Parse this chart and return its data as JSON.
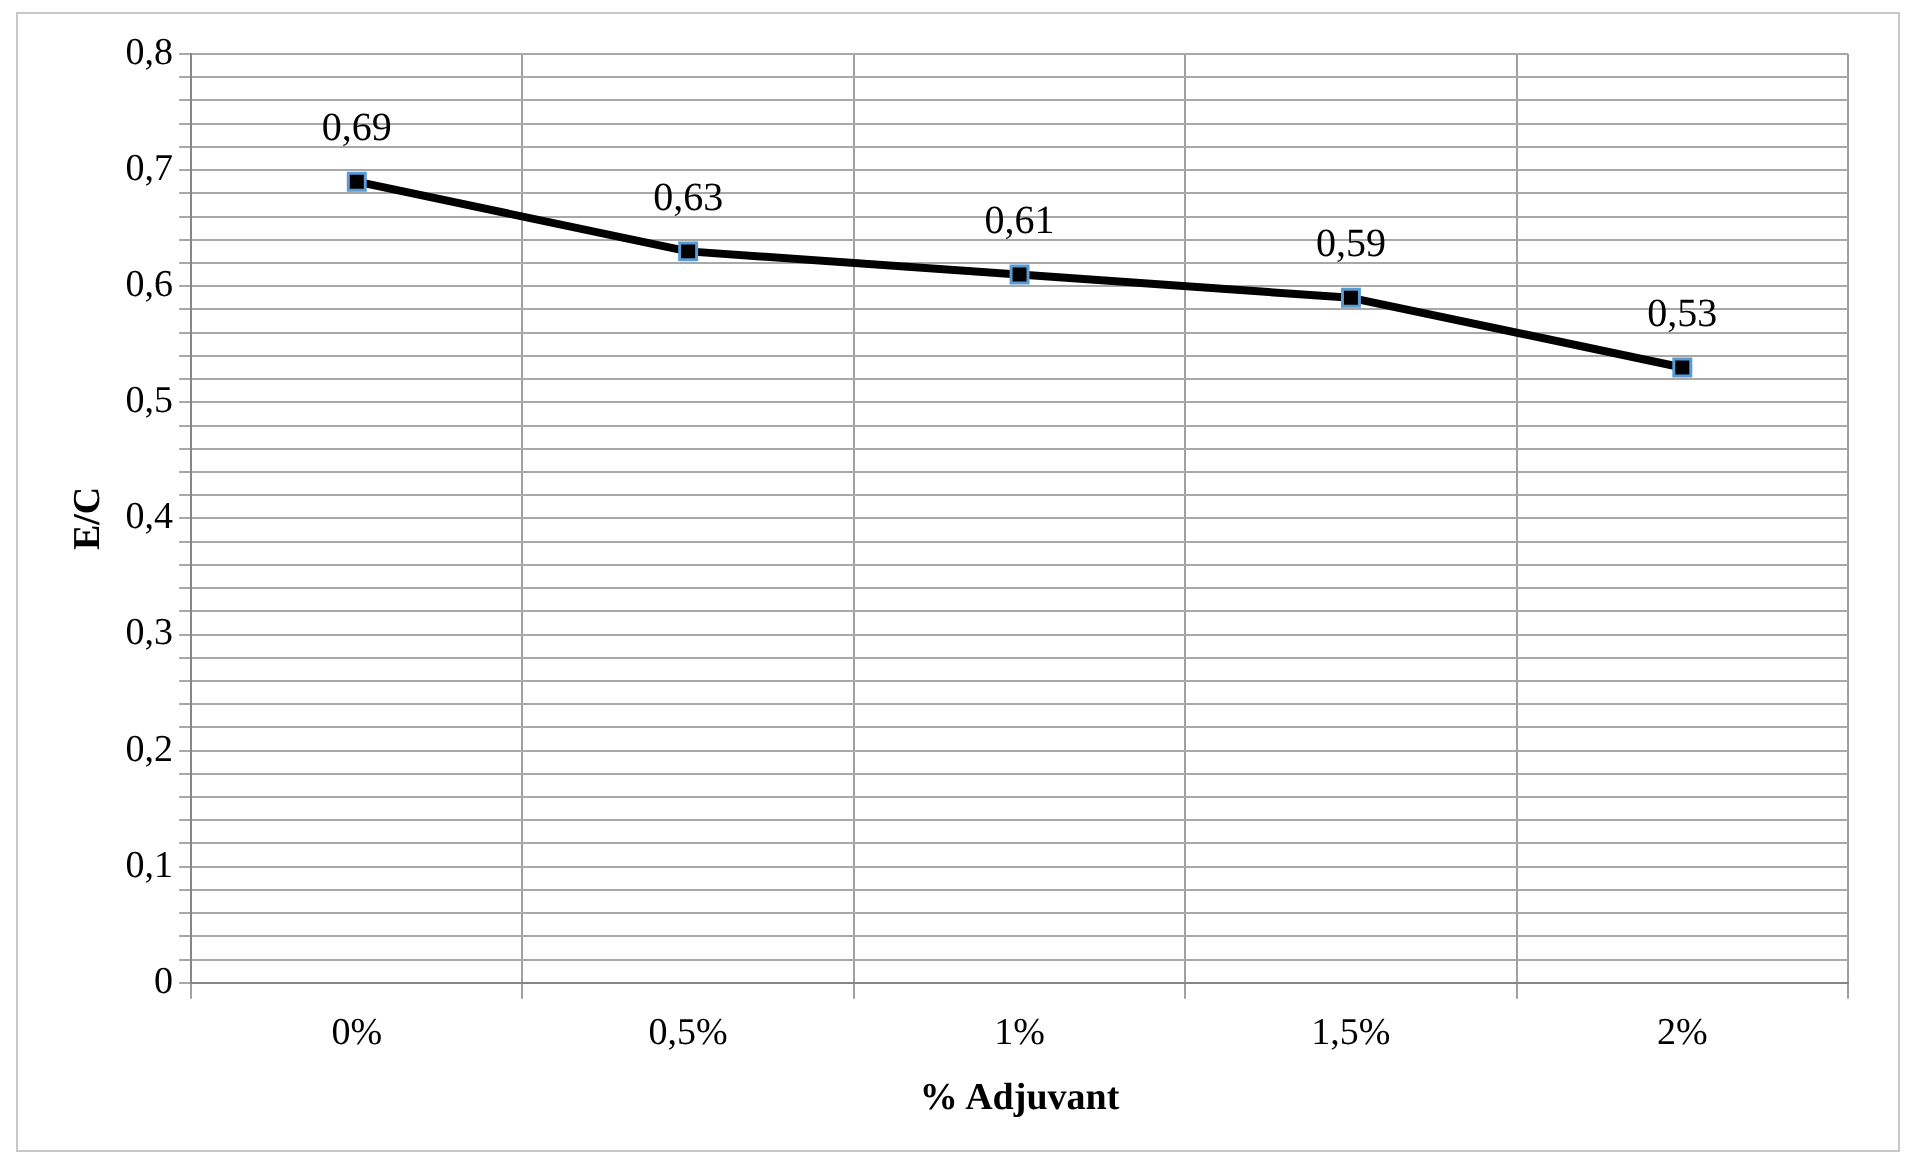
{
  "chart_data": {
    "type": "line",
    "xlabel": "% Adjuvant",
    "ylabel": "E/C",
    "categories": [
      "0%",
      "0,5%",
      "1%",
      "1,5%",
      "2%"
    ],
    "series": [
      {
        "color": "#000000",
        "values": [
          0.69,
          0.63,
          0.61,
          0.59,
          0.53
        ],
        "value_labels": [
          "0,69",
          "0,63",
          "0,61",
          "0,59",
          "0,53"
        ]
      }
    ],
    "ylim": [
      0,
      0.8
    ],
    "yticks": [
      0,
      {
        "value": 0.02,
        "label": null
      },
      {
        "value": 0.04,
        "label": null
      },
      {
        "value": 0.06,
        "label": null
      },
      {
        "value": 0.08,
        "label": null
      },
      {
        "value": 0.1,
        "label": "0,1"
      },
      {
        "value": 0.12,
        "label": null
      },
      {
        "value": 0.14,
        "label": null
      },
      {
        "value": 0.16,
        "label": null
      },
      {
        "value": 0.18,
        "label": null
      },
      {
        "value": 0.2,
        "label": "0,2"
      },
      {
        "value": 0.22,
        "label": null
      },
      {
        "value": 0.24,
        "label": null
      },
      {
        "value": 0.26,
        "label": null
      },
      {
        "value": 0.28,
        "label": null
      },
      {
        "value": 0.3,
        "label": "0,3"
      },
      {
        "value": 0.32,
        "label": null
      },
      {
        "value": 0.34,
        "label": null
      },
      {
        "value": 0.36,
        "label": null
      },
      {
        "value": 0.38,
        "label": null
      },
      {
        "value": 0.4,
        "label": "0,4"
      },
      {
        "value": 0.42,
        "label": null
      },
      {
        "value": 0.44,
        "label": null
      },
      {
        "value": 0.46,
        "label": null
      },
      {
        "value": 0.48,
        "label": null
      },
      {
        "value": 0.5,
        "label": "0,5"
      },
      {
        "value": 0.52,
        "label": null
      },
      {
        "value": 0.54,
        "label": null
      },
      {
        "value": 0.56,
        "label": null
      },
      {
        "value": 0.58,
        "label": null
      },
      {
        "value": 0.6,
        "label": "0,6"
      },
      {
        "value": 0.62,
        "label": null
      },
      {
        "value": 0.64,
        "label": null
      },
      {
        "value": 0.66,
        "label": null
      },
      {
        "value": 0.68,
        "label": null
      },
      {
        "value": 0.7,
        "label": "0,7"
      },
      {
        "value": 0.72,
        "label": null
      },
      {
        "value": 0.74,
        "label": null
      },
      {
        "value": 0.76,
        "label": null
      },
      {
        "value": 0.78,
        "label": null
      },
      {
        "value": 0.8,
        "label": "0,8"
      }
    ],
    "grid": true,
    "legend": false,
    "marker": "square",
    "line_style": "solid"
  }
}
